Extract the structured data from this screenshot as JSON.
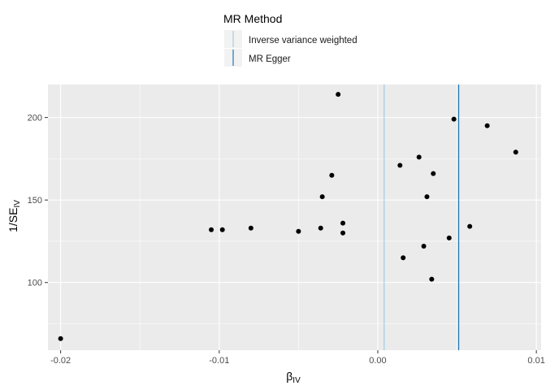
{
  "legend": {
    "title": "MR Method",
    "items": [
      {
        "label": "Inverse variance weighted",
        "color": "#a6cee3"
      },
      {
        "label": "MR Egger",
        "color": "#1f78b4"
      }
    ]
  },
  "chart_data": {
    "type": "scatter",
    "title": "",
    "xlabel": {
      "main": "β",
      "sub": "IV"
    },
    "ylabel": {
      "main": "1/SE",
      "sub": "IV"
    },
    "xlim": [
      -0.0208,
      0.0103
    ],
    "ylim": [
      59,
      220
    ],
    "x_ticks": [
      -0.02,
      -0.01,
      0.0,
      0.01
    ],
    "x_tick_labels": [
      "-0.02",
      "-0.01",
      "0.00",
      "0.01"
    ],
    "y_ticks": [
      100,
      150,
      200
    ],
    "y_tick_labels": [
      "100",
      "150",
      "200"
    ],
    "grid": true,
    "legend_position": "top",
    "vlines": [
      {
        "name": "Inverse variance weighted",
        "x": 0.0004,
        "color": "#a6cee3"
      },
      {
        "name": "MR Egger",
        "x": 0.0051,
        "color": "#1f78b4"
      }
    ],
    "points": [
      {
        "x": -0.02,
        "y": 66
      },
      {
        "x": -0.0105,
        "y": 132
      },
      {
        "x": -0.0098,
        "y": 132
      },
      {
        "x": -0.008,
        "y": 133
      },
      {
        "x": -0.005,
        "y": 131
      },
      {
        "x": -0.0036,
        "y": 133
      },
      {
        "x": -0.0035,
        "y": 152
      },
      {
        "x": -0.0029,
        "y": 165
      },
      {
        "x": -0.0025,
        "y": 214
      },
      {
        "x": -0.0022,
        "y": 136
      },
      {
        "x": -0.0022,
        "y": 130
      },
      {
        "x": 0.0014,
        "y": 171
      },
      {
        "x": 0.0016,
        "y": 115
      },
      {
        "x": 0.0026,
        "y": 176
      },
      {
        "x": 0.0029,
        "y": 122
      },
      {
        "x": 0.0031,
        "y": 152
      },
      {
        "x": 0.0034,
        "y": 102
      },
      {
        "x": 0.0035,
        "y": 166
      },
      {
        "x": 0.0045,
        "y": 127
      },
      {
        "x": 0.0048,
        "y": 199
      },
      {
        "x": 0.0058,
        "y": 134
      },
      {
        "x": 0.0069,
        "y": 195
      },
      {
        "x": 0.0087,
        "y": 179
      }
    ]
  }
}
